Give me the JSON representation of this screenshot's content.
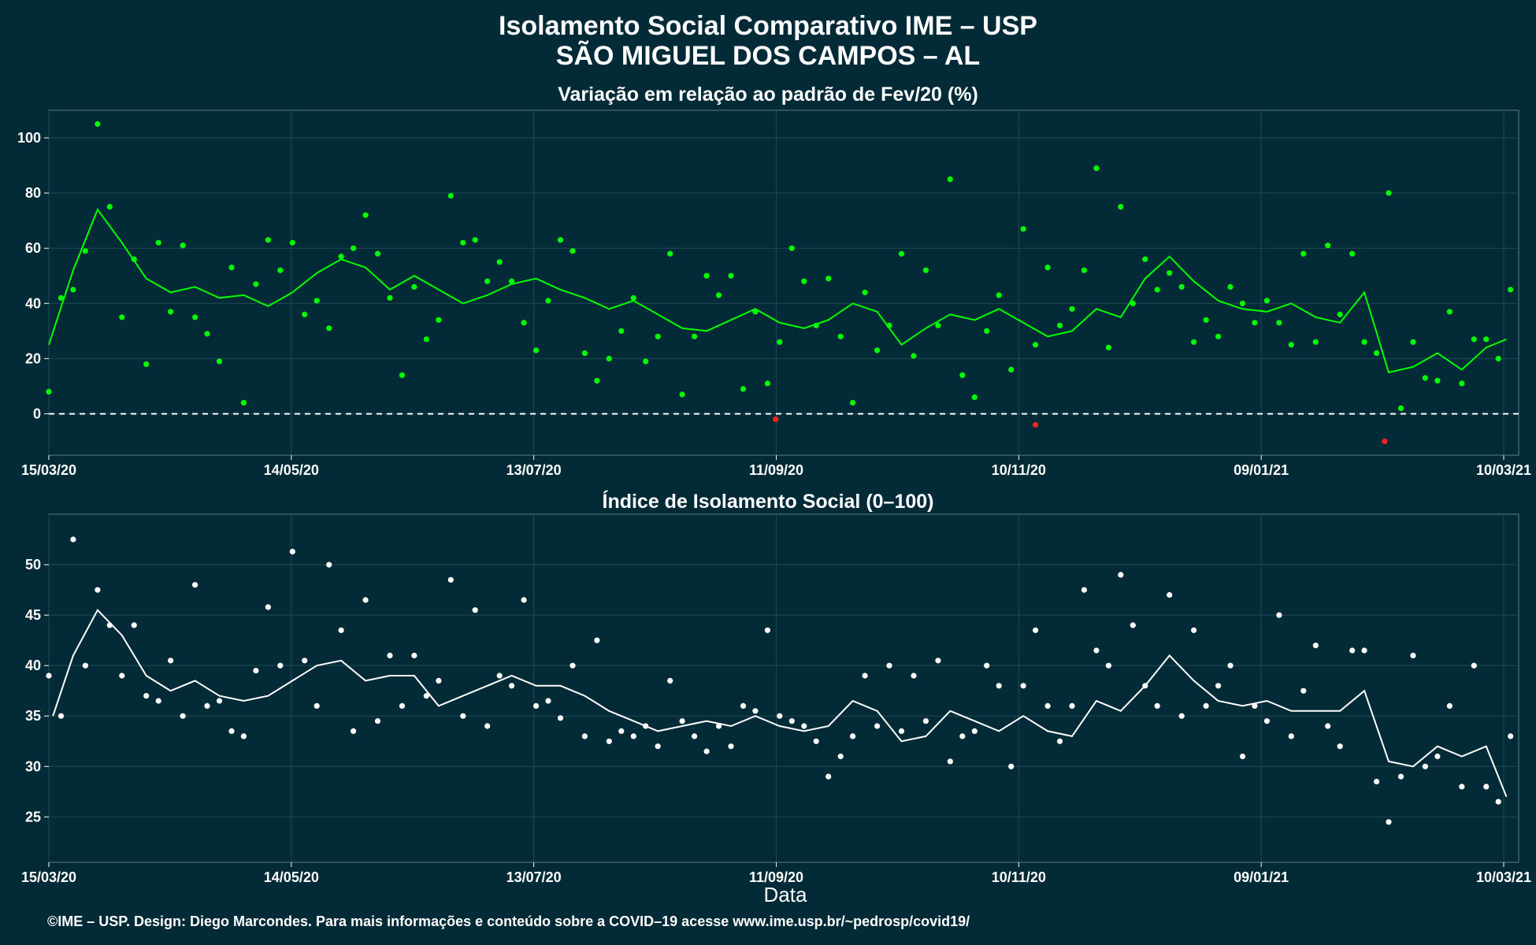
{
  "title_line1": "Isolamento Social Comparativo IME – USP",
  "title_line2": "SÃO MIGUEL DOS CAMPOS – AL",
  "xlabel": "Data",
  "caption": "©IME – USP. Design: Diego Marcondes. Para mais informações e conteúdo sobre a COVID–19 acesse www.ime.usp.br/~pedrosp/covid19/",
  "colors": {
    "background": "#022b37",
    "panel": "#022b37",
    "grid": "#1f4a55",
    "top_points": "#00ff00",
    "top_line": "#00ff00",
    "negative_points": "#ff2020",
    "bottom_points": "#ffffff",
    "bottom_line": "#ffffff",
    "zero_line": "#ffffff"
  },
  "chart_data": [
    {
      "type": "scatter",
      "title": "Variação em relação ao padrão de Fev/20 (%)",
      "x_ticks": [
        "15/03/20",
        "14/05/20",
        "13/07/20",
        "11/09/20",
        "10/11/20",
        "09/01/21",
        "10/03/21"
      ],
      "x_range": [
        "2020-03-15",
        "2021-03-12"
      ],
      "y_ticks": [
        "0",
        "20",
        "40",
        "60",
        "80",
        "100"
      ],
      "ylim": [
        -15,
        110
      ],
      "reference_line": 0,
      "points_series": {
        "name": "",
        "keys": [
          0,
          3,
          6,
          9,
          12,
          15,
          18,
          21,
          24,
          27,
          30,
          33,
          36,
          39,
          42,
          45,
          48,
          51,
          54,
          57,
          60,
          63,
          66,
          69,
          72,
          75,
          78,
          81,
          84,
          87,
          90,
          93,
          96,
          99,
          102,
          105,
          108,
          111,
          114,
          117,
          120,
          123,
          126,
          129,
          132,
          135,
          138,
          141,
          144,
          147,
          150,
          153,
          156,
          159,
          162,
          165,
          168,
          171,
          174,
          177,
          180,
          183,
          186,
          189,
          192,
          195,
          198,
          201,
          204,
          207,
          210,
          213,
          216,
          219,
          222,
          225,
          228,
          231,
          234,
          237,
          240,
          243,
          246,
          249,
          252,
          255,
          258,
          261,
          264,
          267,
          270,
          273,
          276,
          279,
          282,
          285,
          288,
          291,
          294,
          297,
          300,
          303,
          306,
          309,
          312,
          315,
          318,
          321,
          324,
          327,
          330,
          333,
          336,
          339,
          342,
          345,
          348,
          351,
          354,
          357,
          360
        ],
        "values": [
          8,
          42,
          45,
          59,
          105,
          75,
          35,
          56,
          18,
          62,
          37,
          61,
          35,
          29,
          19,
          53,
          4,
          47,
          63,
          52,
          62,
          36,
          41,
          31,
          57,
          60,
          72,
          58,
          42,
          14,
          46,
          27,
          34,
          79,
          62,
          63,
          48,
          55,
          48,
          33,
          23,
          41,
          63,
          59,
          22,
          12,
          20,
          30,
          42,
          19,
          28,
          58,
          7,
          28,
          50,
          43,
          50,
          9,
          37,
          11,
          26,
          60,
          48,
          32,
          49,
          28,
          4,
          44,
          23,
          32,
          58,
          21,
          52,
          32,
          85,
          14,
          6,
          30,
          43,
          16,
          67,
          25,
          53,
          32,
          38,
          52,
          89,
          24,
          75,
          40,
          56,
          45,
          51,
          46,
          26,
          34,
          28,
          46,
          40,
          33,
          41,
          33,
          25,
          58,
          26,
          61,
          36,
          58,
          26,
          22,
          80,
          2,
          26,
          13,
          12,
          37,
          11,
          27,
          27,
          20,
          45
        ]
      },
      "negative_points": {
        "days": [
          179,
          243,
          329
        ],
        "values": [
          -2,
          -4,
          -10
        ]
      },
      "line_series": {
        "name": "",
        "keys": [
          0,
          6,
          12,
          18,
          24,
          30,
          36,
          42,
          48,
          54,
          60,
          66,
          72,
          78,
          84,
          90,
          96,
          102,
          108,
          114,
          120,
          126,
          132,
          138,
          144,
          150,
          156,
          162,
          168,
          174,
          180,
          186,
          192,
          198,
          204,
          210,
          216,
          222,
          228,
          234,
          240,
          246,
          252,
          258,
          264,
          270,
          276,
          282,
          288,
          294,
          300,
          306,
          312,
          318,
          324,
          330,
          336,
          342,
          348,
          354,
          359
        ],
        "values": [
          25,
          52,
          74,
          62,
          49,
          44,
          46,
          42,
          43,
          39,
          44,
          51,
          56,
          53,
          45,
          50,
          45,
          40,
          43,
          47,
          49,
          45,
          42,
          38,
          41,
          36,
          31,
          30,
          34,
          38,
          33,
          31,
          34,
          40,
          37,
          25,
          31,
          36,
          34,
          38,
          33,
          28,
          30,
          38,
          35,
          49,
          57,
          48,
          41,
          38,
          37,
          40,
          35,
          33,
          44,
          15,
          17,
          22,
          16,
          24,
          27
        ]
      }
    },
    {
      "type": "scatter",
      "title": "Índice de Isolamento Social (0–100)",
      "x_ticks": [
        "15/03/20",
        "14/05/20",
        "13/07/20",
        "11/09/20",
        "10/11/20",
        "09/01/21",
        "10/03/21"
      ],
      "x_range": [
        "2020-03-15",
        "2021-03-12"
      ],
      "y_ticks": [
        "25",
        "30",
        "35",
        "40",
        "45",
        "50"
      ],
      "ylim": [
        20.5,
        55
      ],
      "points_series": {
        "name": "",
        "keys": [
          0,
          3,
          6,
          9,
          12,
          15,
          18,
          21,
          24,
          27,
          30,
          33,
          36,
          39,
          42,
          45,
          48,
          51,
          54,
          57,
          60,
          63,
          66,
          69,
          72,
          75,
          78,
          81,
          84,
          87,
          90,
          93,
          96,
          99,
          102,
          105,
          108,
          111,
          114,
          117,
          120,
          123,
          126,
          129,
          132,
          135,
          138,
          141,
          144,
          147,
          150,
          153,
          156,
          159,
          162,
          165,
          168,
          171,
          174,
          177,
          180,
          183,
          186,
          189,
          192,
          195,
          198,
          201,
          204,
          207,
          210,
          213,
          216,
          219,
          222,
          225,
          228,
          231,
          234,
          237,
          240,
          243,
          246,
          249,
          252,
          255,
          258,
          261,
          264,
          267,
          270,
          273,
          276,
          279,
          282,
          285,
          288,
          291,
          294,
          297,
          300,
          303,
          306,
          309,
          312,
          315,
          318,
          321,
          324,
          327,
          330,
          333,
          336,
          339,
          342,
          345,
          348,
          351,
          354,
          357,
          360
        ],
        "values": [
          39,
          35,
          52.5,
          40,
          47.5,
          44,
          39,
          44,
          37,
          36.5,
          40.5,
          35,
          48,
          36,
          36.5,
          33.5,
          33,
          39.5,
          45.8,
          40,
          51.3,
          40.5,
          36,
          50,
          43.5,
          33.5,
          46.5,
          34.5,
          41,
          36,
          41,
          37,
          38.5,
          48.5,
          35,
          45.5,
          34,
          39,
          38,
          46.5,
          36,
          36.5,
          34.8,
          40,
          33,
          42.5,
          32.5,
          33.5,
          33,
          34,
          32,
          38.5,
          34.5,
          33,
          31.5,
          34,
          32,
          36,
          35.5,
          43.5,
          35,
          34.5,
          34,
          32.5,
          29,
          31,
          33,
          39,
          34,
          40,
          33.5,
          39,
          34.5,
          40.5,
          30.5,
          33,
          33.5,
          40,
          38,
          30,
          38,
          43.5,
          36,
          32.5,
          36,
          47.5,
          41.5,
          40,
          49,
          44,
          38,
          36,
          47,
          35,
          43.5,
          36,
          38,
          40,
          31,
          36,
          34.5,
          45,
          33,
          37.5,
          42,
          34,
          32,
          41.5,
          41.5,
          28.5,
          24.5,
          29,
          41,
          30,
          31,
          36,
          28,
          40,
          28,
          26.5,
          33
        ]
      },
      "line_series": {
        "name": "",
        "keys": [
          1,
          6,
          12,
          18,
          24,
          30,
          36,
          42,
          48,
          54,
          60,
          66,
          72,
          78,
          84,
          90,
          96,
          102,
          108,
          114,
          120,
          126,
          132,
          138,
          144,
          150,
          156,
          162,
          168,
          174,
          180,
          186,
          192,
          198,
          204,
          210,
          216,
          222,
          228,
          234,
          240,
          246,
          252,
          258,
          264,
          270,
          276,
          282,
          288,
          294,
          300,
          306,
          312,
          318,
          324,
          330,
          336,
          342,
          348,
          354,
          359
        ],
        "values": [
          35,
          41,
          45.5,
          43,
          39,
          37.5,
          38.5,
          37,
          36.5,
          37,
          38.5,
          40,
          40.5,
          38.5,
          39,
          39,
          36,
          37,
          38,
          39,
          38,
          38,
          37,
          35.5,
          34.5,
          33.5,
          34,
          34.5,
          34,
          35,
          34,
          33.5,
          34,
          36.5,
          35.5,
          32.5,
          33,
          35.5,
          34.5,
          33.5,
          35,
          33.5,
          33,
          36.5,
          35.5,
          38,
          41,
          38.5,
          36.5,
          36,
          36.5,
          35.5,
          35.5,
          35.5,
          37.5,
          30.5,
          30,
          32,
          31,
          32,
          27
        ]
      }
    }
  ]
}
